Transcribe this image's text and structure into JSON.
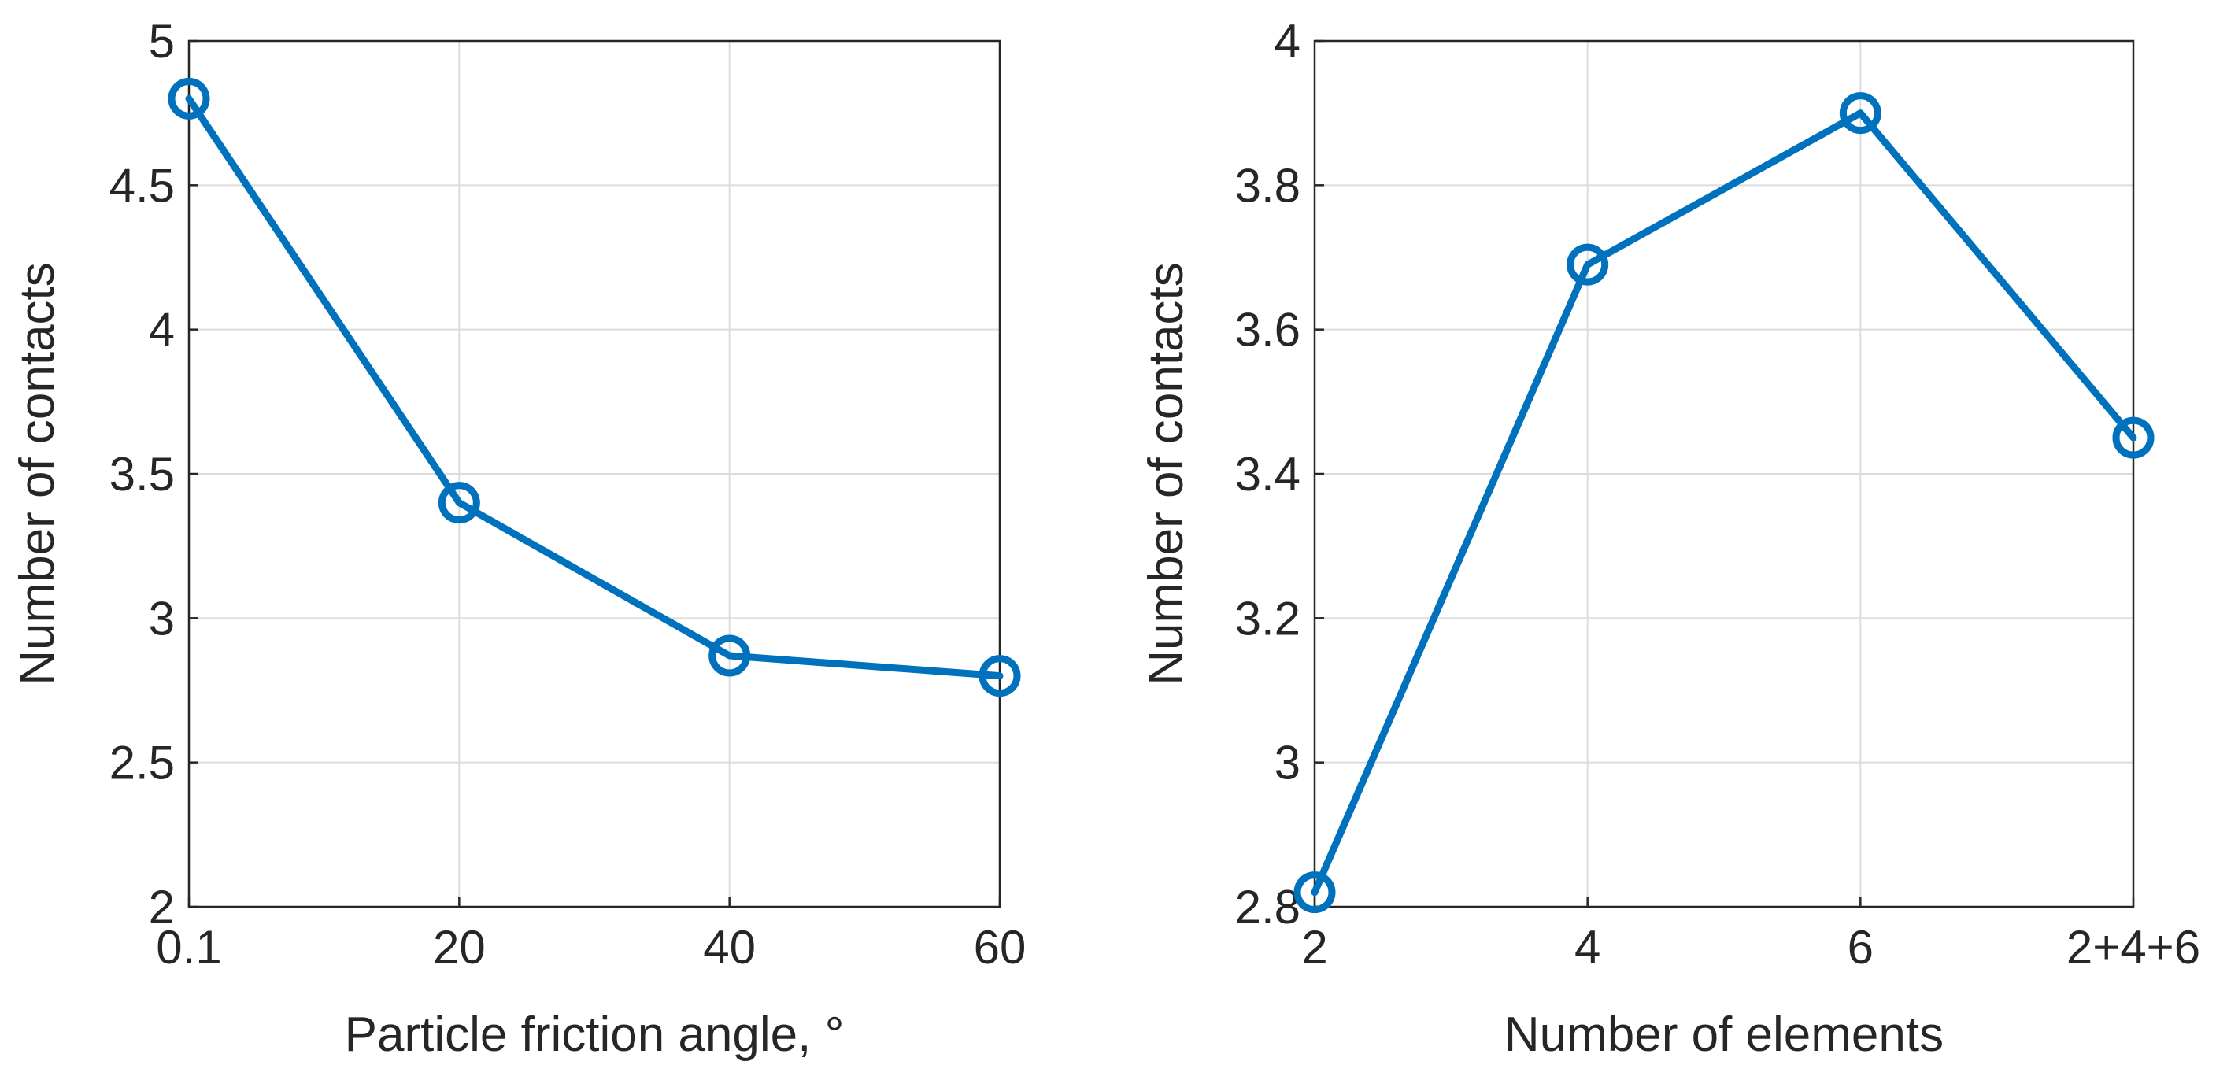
{
  "chart_data": [
    {
      "type": "line",
      "title": "",
      "xlabel": "Particle friction angle, °",
      "ylabel": "Number of contacts",
      "categories": [
        "0.1",
        "20",
        "40",
        "60"
      ],
      "ylim": [
        2,
        5
      ],
      "yticks": [
        "2",
        "2.5",
        "3",
        "3.5",
        "4",
        "4.5",
        "5"
      ],
      "grid": true,
      "series": [
        {
          "name": "Number of contacts",
          "values": [
            4.8,
            3.4,
            2.87,
            2.8
          ],
          "color": "#0072BD",
          "marker": "circle"
        }
      ]
    },
    {
      "type": "line",
      "title": "",
      "xlabel": "Number of elements",
      "ylabel": "Number of contacts",
      "categories": [
        "2",
        "4",
        "6",
        "2+4+6"
      ],
      "ylim": [
        2.8,
        4
      ],
      "yticks": [
        "2.8",
        "3",
        "3.2",
        "3.4",
        "3.6",
        "3.8",
        "4"
      ],
      "grid": true,
      "series": [
        {
          "name": "Number of contacts",
          "values": [
            2.82,
            3.69,
            3.9,
            3.45
          ],
          "color": "#0072BD",
          "marker": "circle"
        }
      ]
    }
  ]
}
